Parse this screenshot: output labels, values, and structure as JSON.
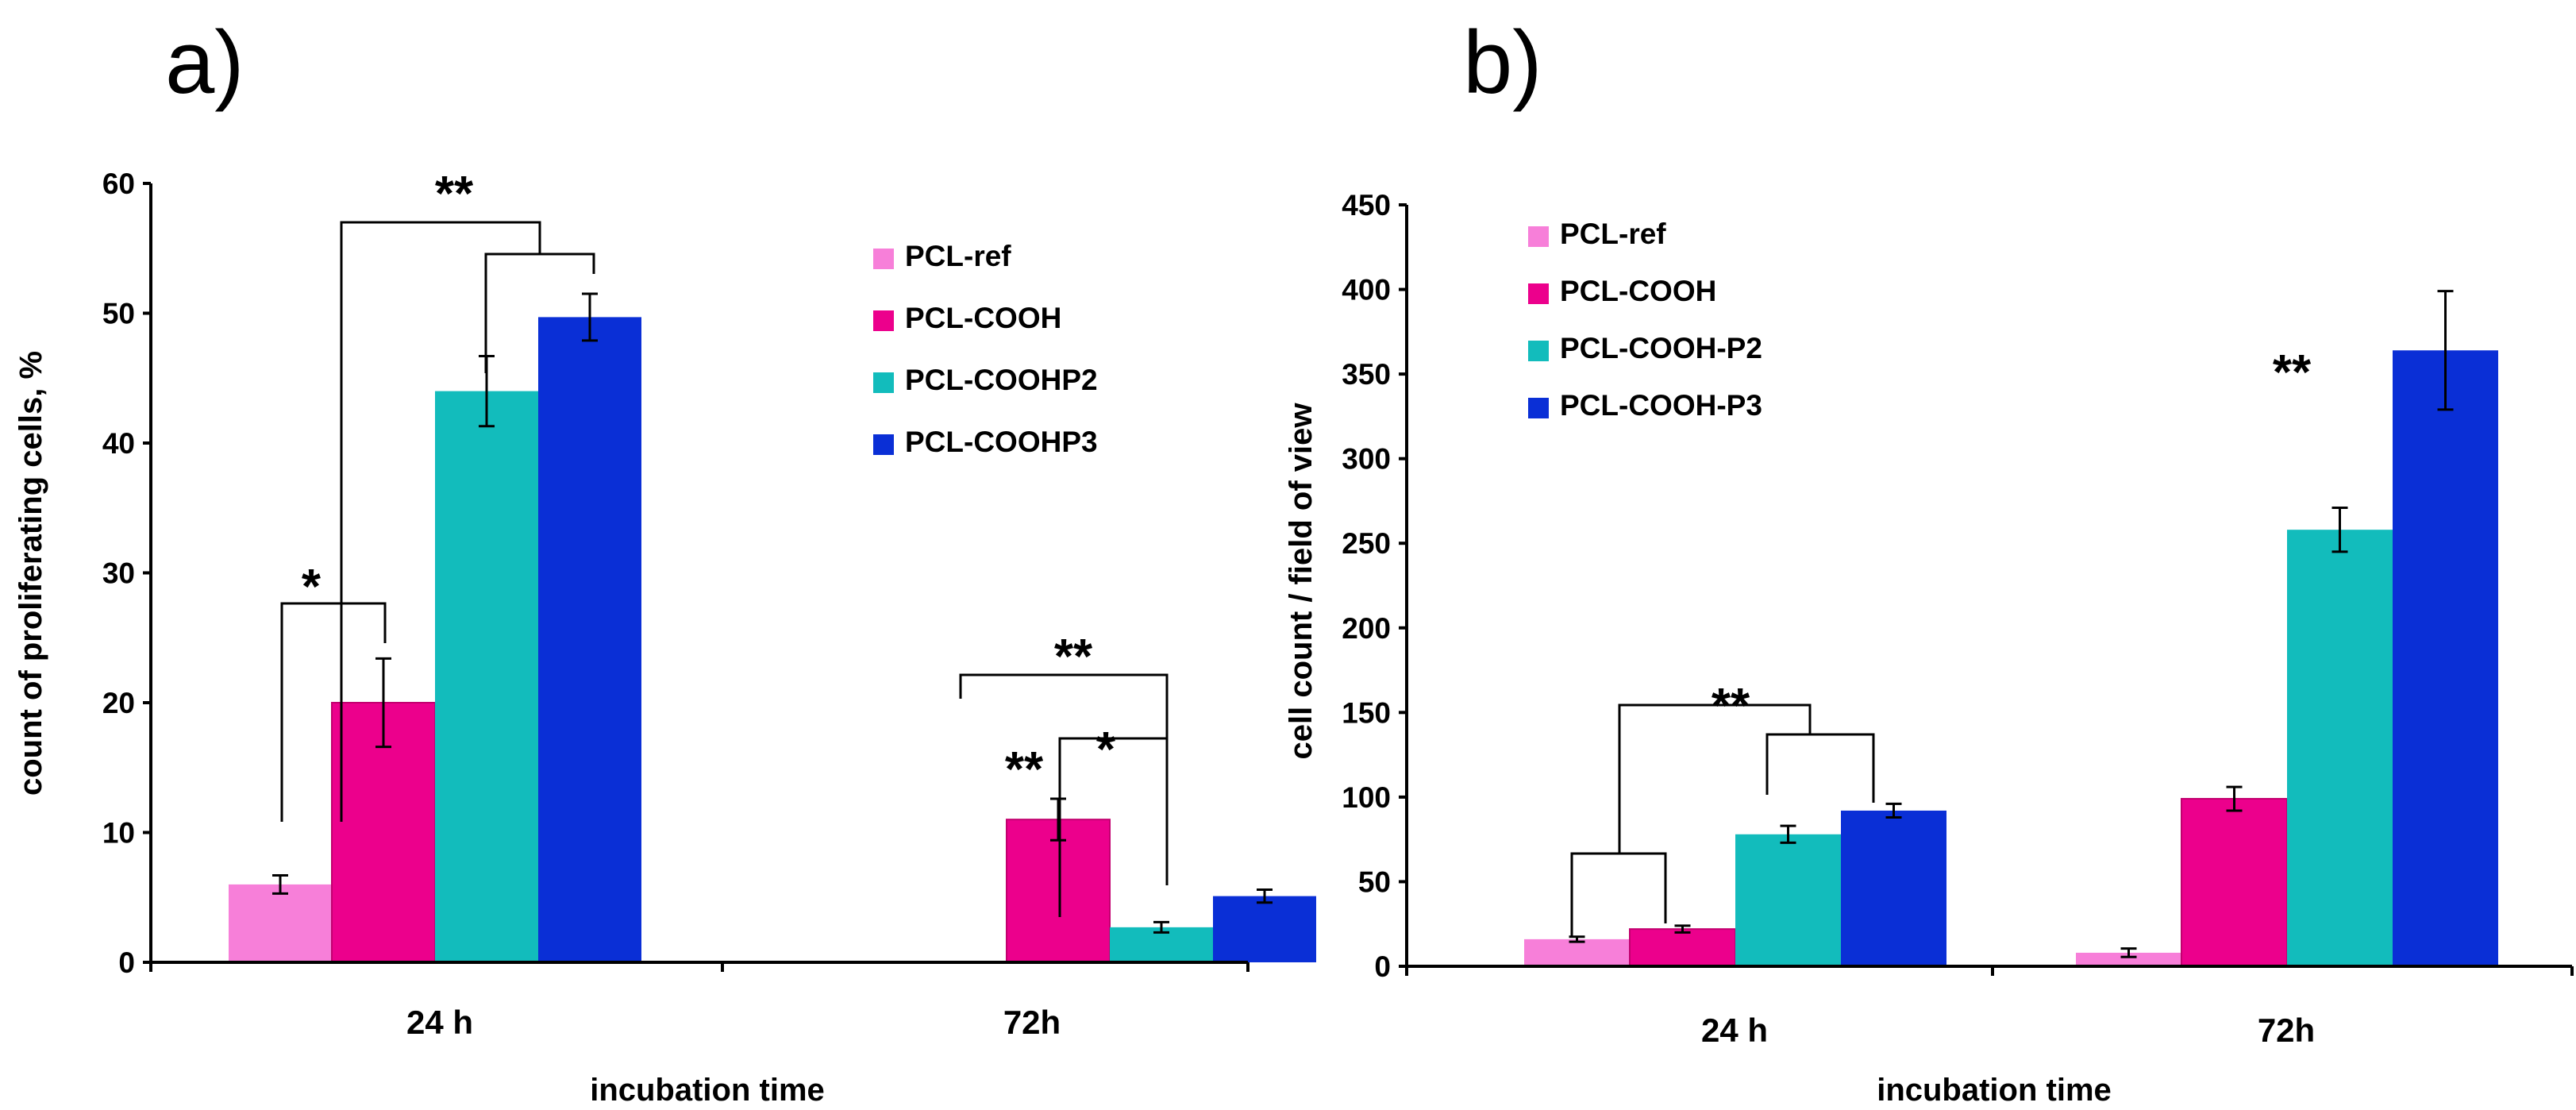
{
  "chart_data": [
    {
      "type": "bar",
      "panel_label": "a)",
      "title": "",
      "xlabel": "incubation time",
      "ylabel": "count of proliferating cells, %",
      "ylim": [
        0,
        60
      ],
      "yticks": [
        0,
        10,
        20,
        30,
        40,
        50,
        60
      ],
      "categories": [
        "24 h",
        "72h"
      ],
      "legend_position": "top-right",
      "series": [
        {
          "name": "PCL-ref",
          "color": "#f77fd9",
          "values": [
            6,
            null
          ],
          "errors": [
            0.7,
            null
          ]
        },
        {
          "name": "PCL-COOH",
          "color": "#ec008c",
          "values": [
            20,
            11
          ],
          "errors": [
            3.4,
            1.6
          ]
        },
        {
          "name": "PCL-COOHP2",
          "color": "#12bcbc",
          "values": [
            44,
            2.7
          ],
          "errors": [
            2.7,
            0.4
          ]
        },
        {
          "name": "PCL-COOHP3",
          "color": "#0a2fd6",
          "values": [
            49.7,
            5.1
          ],
          "errors": [
            1.8,
            0.5
          ]
        }
      ],
      "legend_labels": [
        "PCL-ref",
        "PCL-COOH",
        "PCL-COOHP2",
        "PCL-COOHP3"
      ],
      "annotations": [
        "*",
        "**",
        "**",
        "**",
        "*"
      ]
    },
    {
      "type": "bar",
      "panel_label": "b)",
      "title": "",
      "xlabel": "incubation time",
      "ylabel": "cell count / field of view",
      "ylim": [
        0,
        450
      ],
      "yticks": [
        0,
        50,
        100,
        150,
        200,
        250,
        300,
        350,
        400,
        450
      ],
      "categories": [
        "24 h",
        "72h"
      ],
      "legend_position": "top-left",
      "series": [
        {
          "name": "PCL-ref",
          "color": "#f77fd9",
          "values": [
            16,
            8
          ],
          "errors": [
            1.5,
            2.5
          ]
        },
        {
          "name": "PCL-COOH",
          "color": "#ec008c",
          "values": [
            22,
            99
          ],
          "errors": [
            2,
            7
          ]
        },
        {
          "name": "PCL-COOH-P2",
          "color": "#12bcbc",
          "values": [
            78,
            258
          ],
          "errors": [
            5,
            13
          ]
        },
        {
          "name": "PCL-COOH-P3",
          "color": "#0a2fd6",
          "values": [
            92,
            364
          ],
          "errors": [
            4,
            35
          ]
        }
      ],
      "legend_labels": [
        "PCL-ref",
        "PCL-COOH",
        "PCL-COOH-P2",
        "PCL-COOH-P3"
      ],
      "annotations": [
        "**",
        "**"
      ]
    }
  ]
}
